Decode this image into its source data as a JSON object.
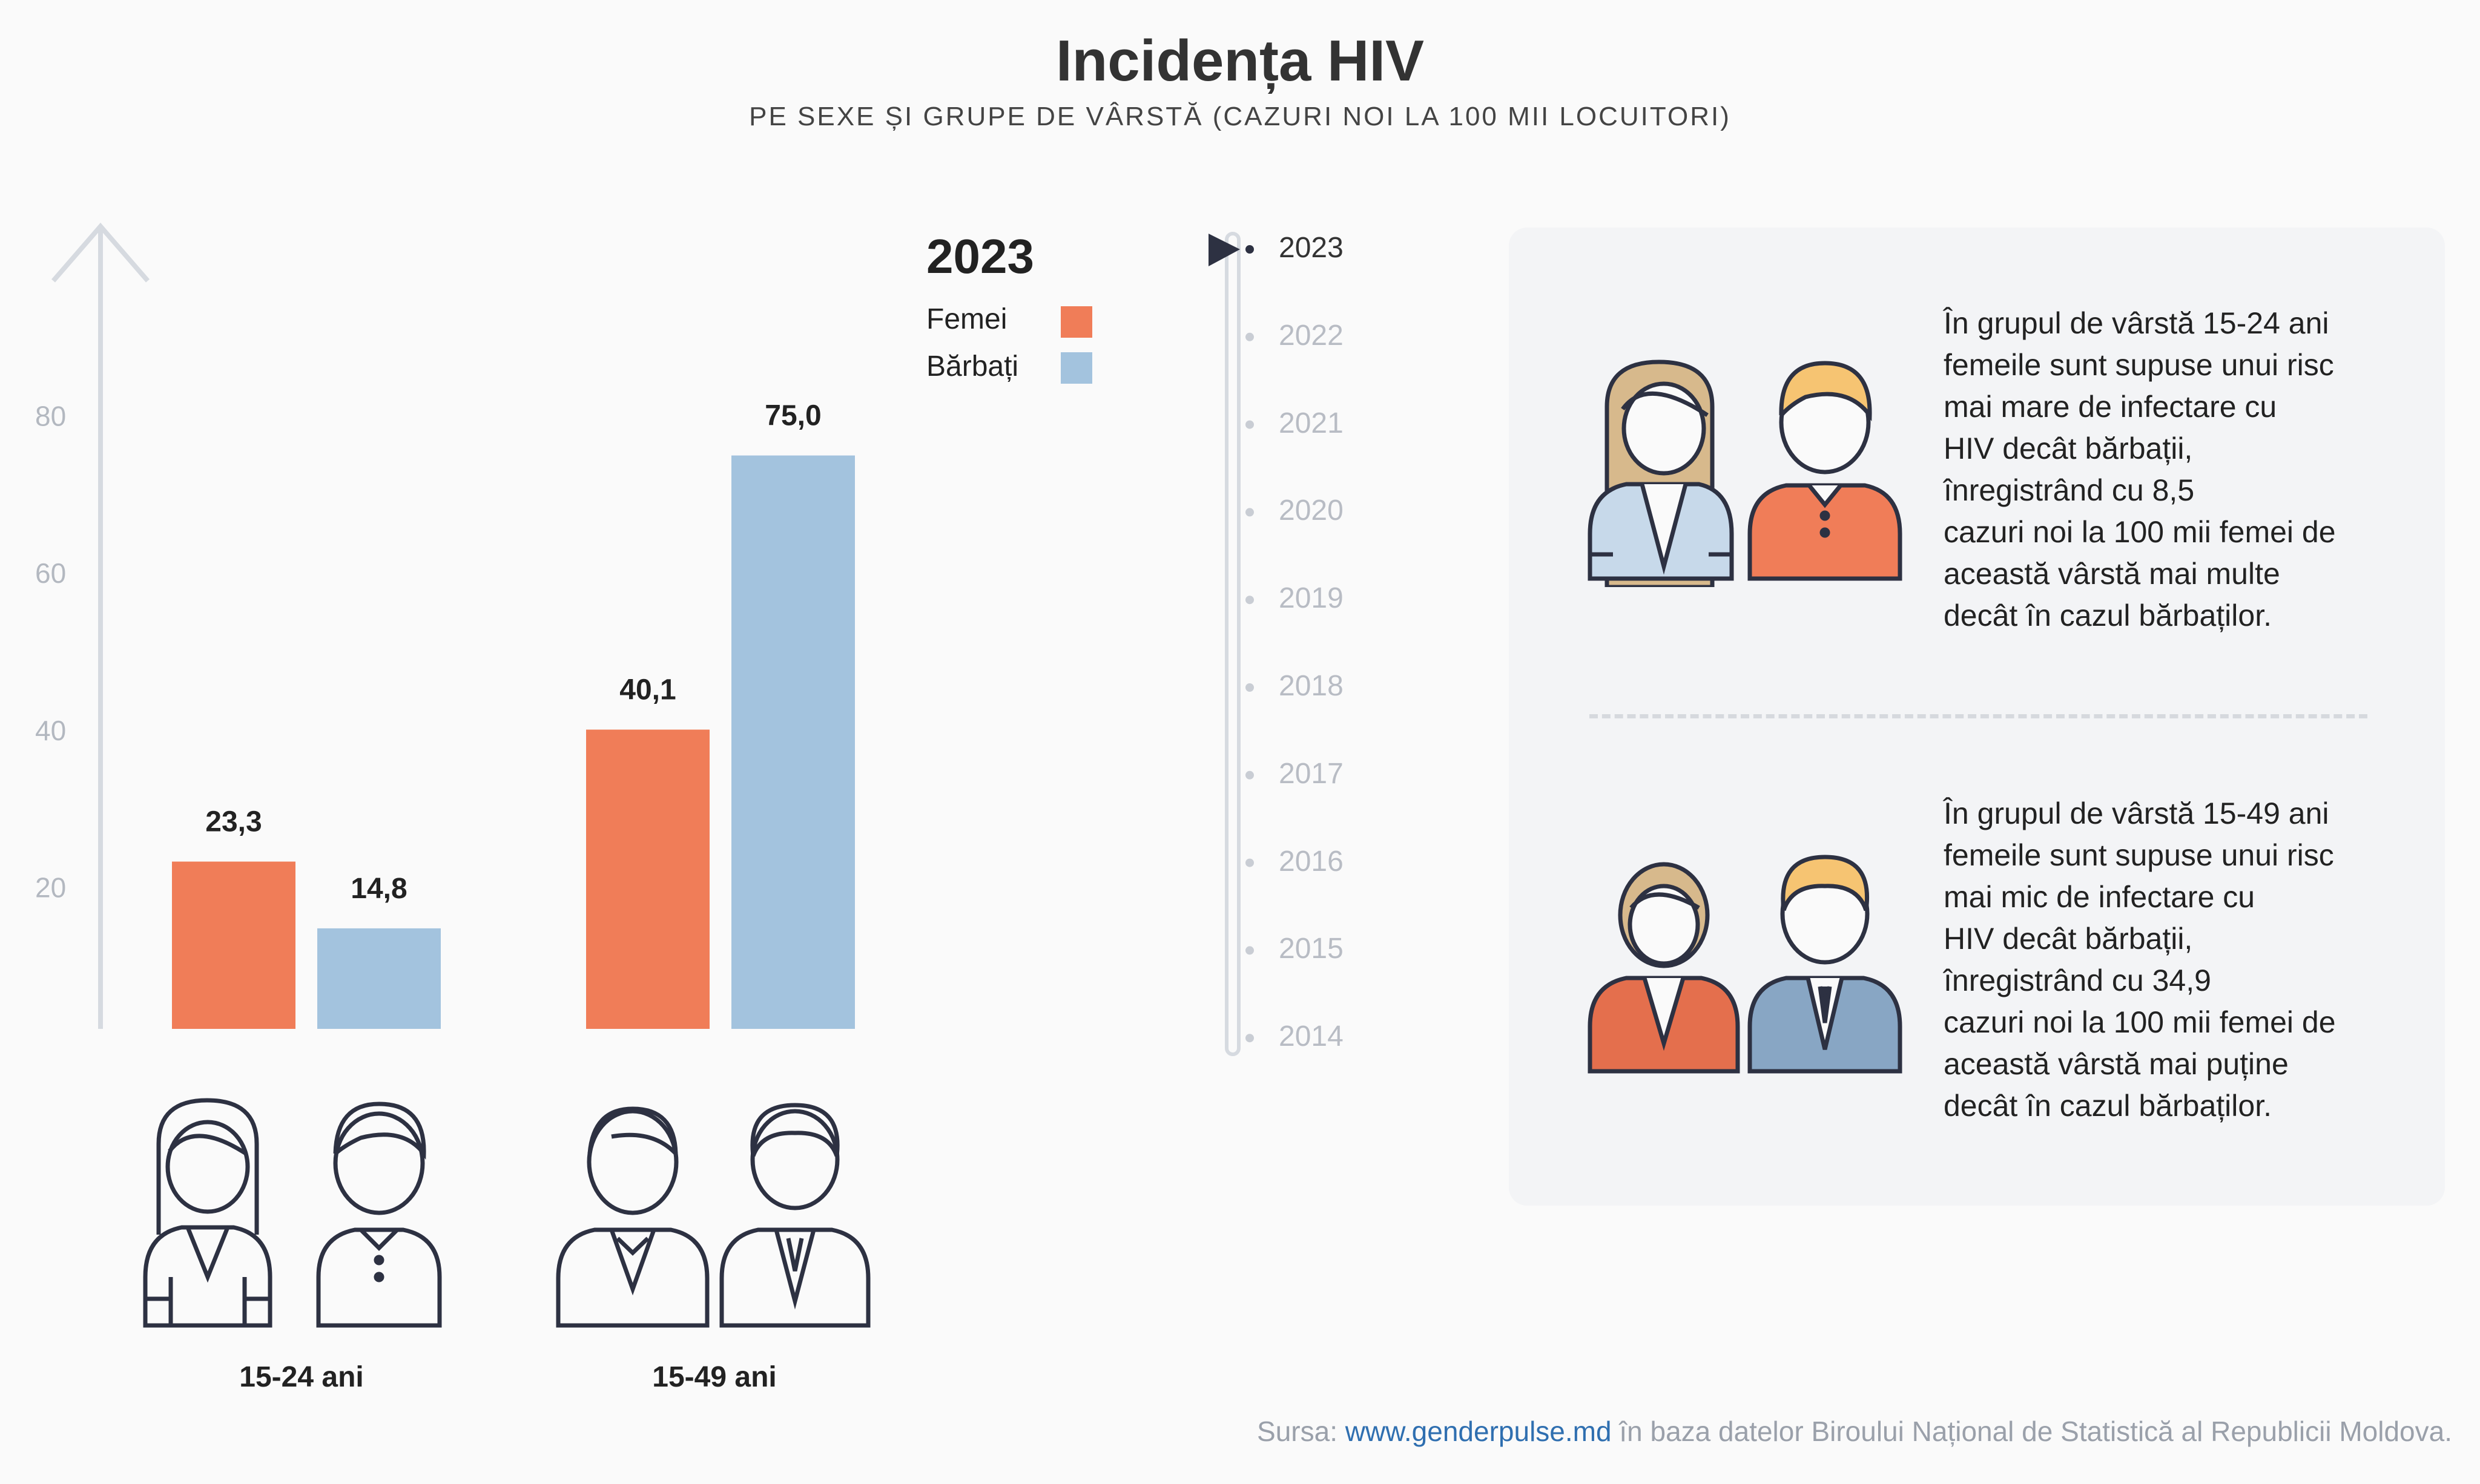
{
  "title": "Incidența HIV",
  "subtitle": "PE SEXE ȘI GRUPE DE VÂRSTĂ (CAZURI NOI LA 100 MII LOCUITORI)",
  "colors": {
    "femei": "#f07d58",
    "barbati": "#a3c3de",
    "axis": "#d6dae0",
    "text": "#222222"
  },
  "chart_data": {
    "type": "bar",
    "title": "2023",
    "categories": [
      "15-24 ani",
      "15-49 ani"
    ],
    "series": [
      {
        "name": "Femei",
        "values": [
          23.3,
          40.1
        ],
        "labels": [
          "23,3",
          "40,1"
        ]
      },
      {
        "name": "Bărbați",
        "values": [
          14.8,
          75.0
        ],
        "labels": [
          "14,8",
          "75,0"
        ]
      }
    ],
    "yticks": [
      0,
      20,
      40,
      60,
      80
    ],
    "ylim": [
      0,
      100
    ],
    "grid": false,
    "legend": "top-right"
  },
  "timeline": {
    "years": [
      "2023",
      "2022",
      "2021",
      "2020",
      "2019",
      "2018",
      "2017",
      "2016",
      "2015",
      "2014"
    ],
    "selected": "2023"
  },
  "icons": {
    "group1": [
      "woman-young-icon",
      "man-young-icon"
    ],
    "group2": [
      "woman-suit-icon",
      "man-suit-icon"
    ],
    "info1": [
      "woman-colored-icon",
      "man-colored-icon"
    ],
    "info2": [
      "woman-suit-colored-icon",
      "man-suit-colored-icon"
    ]
  },
  "info": [
    {
      "text": "În grupul de vârstă 15-24 ani\nfemeile sunt supuse unui risc\nmai mare de infectare cu\n HIV decât bărbații,\n înregistrând cu 8,5\ncazuri noi la 100 mii femei de\naceastă vârstă mai multe\ndecât în cazul bărbaților."
    },
    {
      "text": "În grupul de vârstă 15-49 ani\nfemeile sunt supuse unui risc\nmai mic de infectare cu\n HIV decât bărbații,\n înregistrând cu 34,9\ncazuri noi la 100 mii femei de\naceastă vârstă mai puține\ndecât în cazul bărbaților."
    }
  ],
  "source": {
    "prefix": "Sursa: ",
    "link": "www.genderpulse.md",
    "suffix": " în baza datelor Biroului Național de Statistică al Republicii Moldova."
  }
}
